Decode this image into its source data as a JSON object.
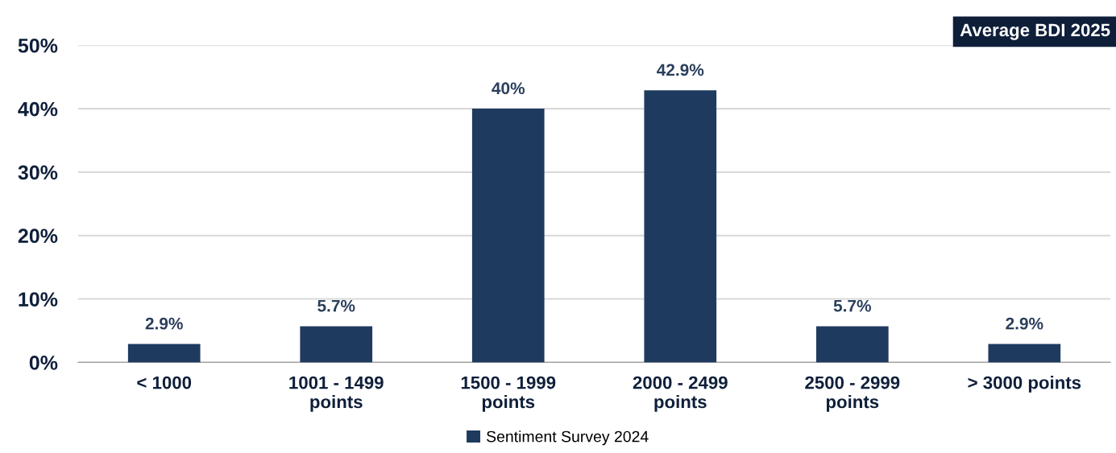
{
  "chart_data": {
    "type": "bar",
    "title": "Average BDI 2025",
    "categories": [
      "< 1000",
      "1001 - 1499\npoints",
      "1500 - 1999\npoints",
      "2000 - 2499\npoints",
      "2500 - 2999\npoints",
      "> 3000 points"
    ],
    "series": [
      {
        "name": "Sentiment Survey 2024",
        "color": "#1f3a5f",
        "values": [
          2.9,
          5.7,
          40,
          42.9,
          5.7,
          2.9
        ],
        "value_labels": [
          "2.9%",
          "5.7%",
          "40%",
          "42.9%",
          "5.7%",
          "2.9%"
        ]
      }
    ],
    "ylim": [
      0,
      50
    ],
    "yticks": [
      {
        "value": 0,
        "label": "0%"
      },
      {
        "value": 10,
        "label": "10%"
      },
      {
        "value": 20,
        "label": "20%"
      },
      {
        "value": 30,
        "label": "30%"
      },
      {
        "value": 40,
        "label": "40%"
      },
      {
        "value": 50,
        "label": "50%"
      }
    ],
    "grid": "y",
    "legend": "bottom"
  }
}
